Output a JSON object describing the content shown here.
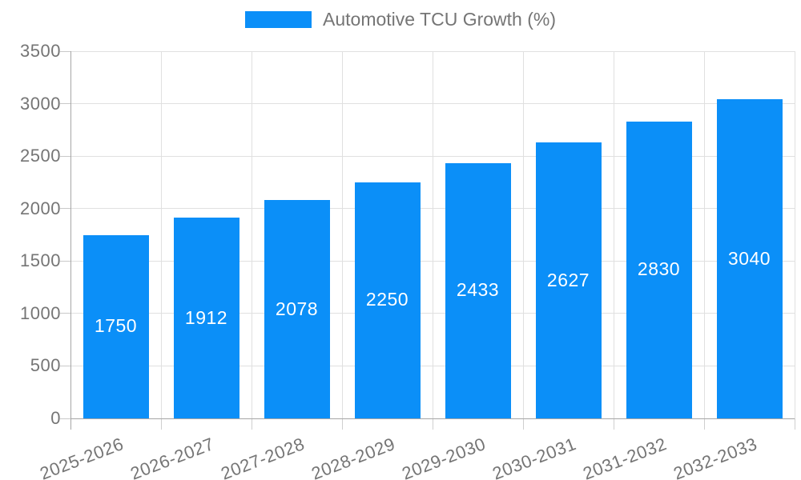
{
  "legend": {
    "label": "Automotive TCU Growth (%)"
  },
  "colors": {
    "bar": "#0b8ff8",
    "grid": "#e0e0e0",
    "axis": "#a6a6a6",
    "tick": "#c9c9c9",
    "text": "#757575",
    "value_label": "#ffffff",
    "background": "#ffffff"
  },
  "chart_data": {
    "type": "bar",
    "title": "",
    "legend": [
      "Automotive TCU Growth (%)"
    ],
    "legend_position": "top",
    "categories": [
      "2025-2026",
      "2026-2027",
      "2027-2028",
      "2028-2029",
      "2029-2030",
      "2030-2031",
      "2031-2032",
      "2032-2033"
    ],
    "series": [
      {
        "name": "Automotive TCU Growth (%)",
        "values": [
          1750,
          1912,
          2078,
          2250,
          2433,
          2627,
          2830,
          3040
        ]
      }
    ],
    "value_labels_shown": true,
    "xlabel": "",
    "ylabel": "",
    "ylim": [
      0,
      3500
    ],
    "ytick_step": 500,
    "yticks": [
      0,
      500,
      1000,
      1500,
      2000,
      2500,
      3000,
      3500
    ],
    "grid": true,
    "x_tick_label_rotation_deg": -21
  }
}
